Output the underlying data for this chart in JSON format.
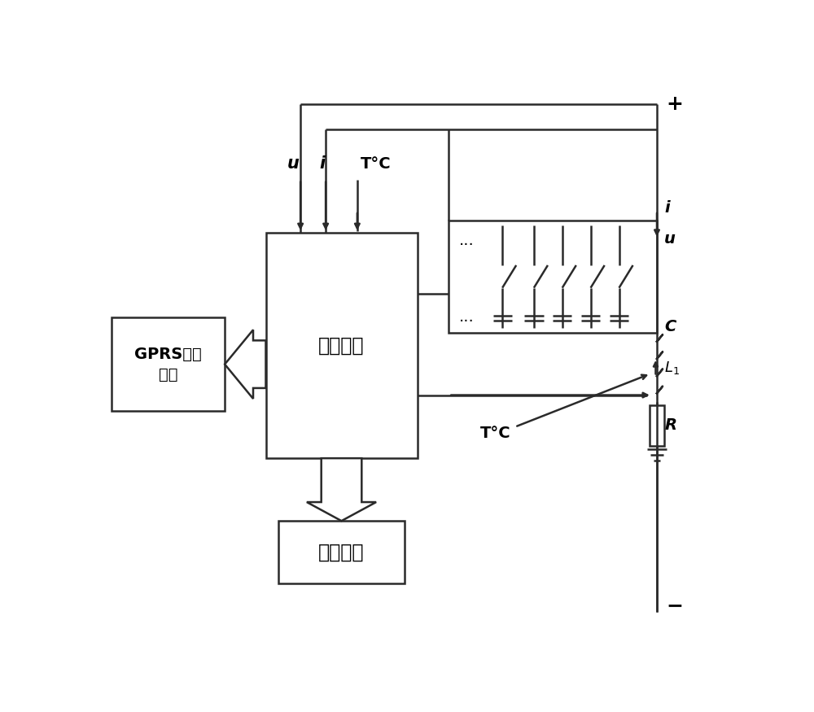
{
  "bg_color": "#ffffff",
  "line_color": "#2a2a2a",
  "text_color": "#000000",
  "mc_label": "主控制器",
  "gprs_label": "GPRS数据\n传输",
  "hmi_label": "人机界面"
}
